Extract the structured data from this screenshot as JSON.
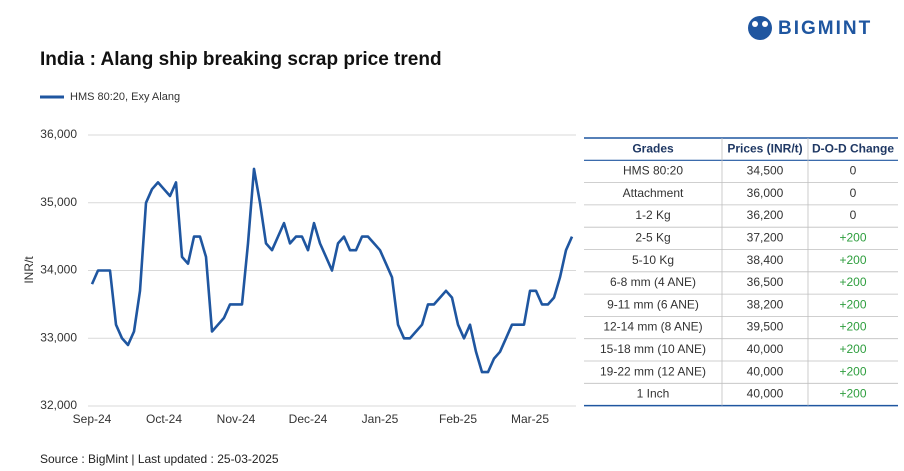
{
  "header": {
    "logo": "BIGMINT"
  },
  "chart_data": {
    "type": "line",
    "title": "India : Alang ship breaking scrap price trend",
    "ylabel": "INR/t",
    "categories": [
      "Sep-24",
      null,
      null,
      null,
      null,
      null,
      null,
      null,
      null,
      null,
      null,
      null,
      "Oct-24",
      null,
      null,
      null,
      null,
      null,
      null,
      null,
      null,
      null,
      null,
      null,
      "Nov-24",
      null,
      null,
      null,
      null,
      null,
      null,
      null,
      null,
      null,
      null,
      null,
      "Dec-24",
      null,
      null,
      null,
      null,
      null,
      null,
      null,
      null,
      null,
      null,
      null,
      "Jan-25",
      null,
      null,
      null,
      null,
      null,
      null,
      null,
      null,
      null,
      null,
      null,
      null,
      "Feb-25",
      null,
      null,
      null,
      null,
      null,
      null,
      null,
      null,
      null,
      null,
      null,
      "Mar-25",
      null,
      null,
      null,
      null,
      null,
      null,
      null
    ],
    "series": [
      {
        "name": "HMS 80:20, Exy Alang",
        "color": "#1f56a0",
        "values": [
          33800,
          34000,
          34000,
          34000,
          33200,
          33000,
          32900,
          33100,
          33700,
          35000,
          35200,
          35300,
          35200,
          35100,
          35300,
          34200,
          34100,
          34500,
          34500,
          34200,
          33100,
          33200,
          33300,
          33500,
          33500,
          33500,
          34400,
          35500,
          35000,
          34400,
          34300,
          34500,
          34700,
          34400,
          34500,
          34500,
          34300,
          34700,
          34400,
          34200,
          34000,
          34400,
          34500,
          34300,
          34300,
          34500,
          34500,
          34400,
          34300,
          34100,
          33900,
          33200,
          33000,
          33000,
          33100,
          33200,
          33500,
          33500,
          33600,
          33700,
          33600,
          33200,
          33000,
          33200,
          32800,
          32500,
          32500,
          32700,
          32800,
          33000,
          33200,
          33200,
          33200,
          33700,
          33700,
          33500,
          33500,
          33600,
          33900,
          34300,
          34500
        ]
      }
    ],
    "ylim": [
      32000,
      36000
    ],
    "yticks": [
      {
        "value": 32000,
        "label": "32,000"
      },
      {
        "value": 33000,
        "label": "33,000"
      },
      {
        "value": 34000,
        "label": "34,000"
      },
      {
        "value": 35000,
        "label": "35,000"
      },
      {
        "value": 36000,
        "label": "36,000"
      }
    ],
    "grid": true
  },
  "table": {
    "columns": [
      "Grades",
      "Prices (INR/t)",
      "D-O-D Change"
    ],
    "rows": [
      [
        "HMS 80:20",
        "34,500",
        "0"
      ],
      [
        "Attachment",
        "36,000",
        "0"
      ],
      [
        "1-2 Kg",
        "36,200",
        "0"
      ],
      [
        "2-5 Kg",
        "37,200",
        "+200"
      ],
      [
        "5-10 Kg",
        "38,400",
        "+200"
      ],
      [
        "6-8 mm (4 ANE)",
        "36,500",
        "+200"
      ],
      [
        "9-11 mm (6 ANE)",
        "38,200",
        "+200"
      ],
      [
        "12-14 mm (8 ANE)",
        "39,500",
        "+200"
      ],
      [
        "15-18 mm (10 ANE)",
        "40,000",
        "+200"
      ],
      [
        "19-22 mm (12 ANE)",
        "40,000",
        "+200"
      ],
      [
        "1 Inch",
        "40,000",
        "+200"
      ]
    ]
  },
  "footer": {
    "source": "Source : BigMint | Last updated : 25-03-2025"
  }
}
